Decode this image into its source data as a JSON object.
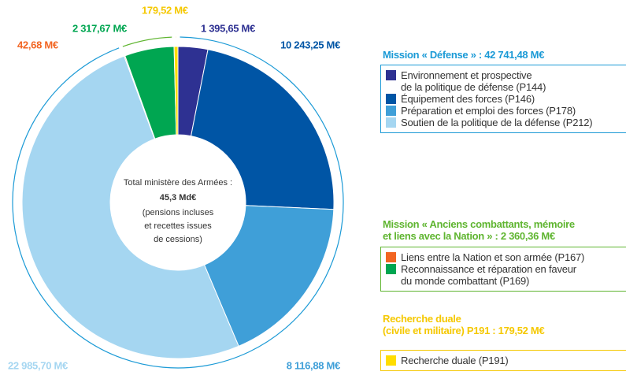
{
  "chart_data": {
    "type": "pie",
    "center_text": [
      "Total ministère des Armées :",
      "45,3 Md€",
      "(pensions incluses",
      "et recettes issues",
      "de cessions)"
    ],
    "groups": [
      {
        "title": "Mission « Défense » : 42 741,48 M€",
        "color": "#1b9ad6",
        "series": [
          {
            "name": "Environnement et prospective\nde la politique de défense (P144)",
            "color": "#2e3192",
            "value": 1395.65,
            "value_label": "1 395,65 M€"
          },
          {
            "name": "Équipement des forces (P146)",
            "color": "#0055a5",
            "value": 10243.25,
            "value_label": "10 243,25 M€"
          },
          {
            "name": "Préparation et emploi des forces (P178)",
            "color": "#3f9fd8",
            "value": 8116.88,
            "value_label": "8 116,88 M€"
          },
          {
            "name": "Soutien de la politique de la défense (P212)",
            "color": "#a5d6f1",
            "value": 22985.7,
            "value_label": "22 985,70 M€"
          }
        ]
      },
      {
        "title": "Mission « Anciens combattants, mémoire\net liens avec la Nation » : 2 360,36 M€",
        "color": "#5fb530",
        "series": [
          {
            "name": "Liens entre la Nation et son armée (P167)",
            "color": "#f26522",
            "value": 42.68,
            "value_label": "42,68 M€"
          },
          {
            "name": "Reconnaissance et réparation en faveur\ndu monde combattant (P169)",
            "color": "#00a651",
            "value": 2317.67,
            "value_label": "2 317,67 M€"
          }
        ]
      },
      {
        "title": "Recherche duale\n(civile et militaire) P191 : 179,52 M€",
        "color": "#f5c800",
        "series": [
          {
            "name": "Recherche duale (P191)",
            "color": "#ffdd00",
            "value": 179.52,
            "value_label": "179,52 M€"
          }
        ]
      }
    ]
  }
}
